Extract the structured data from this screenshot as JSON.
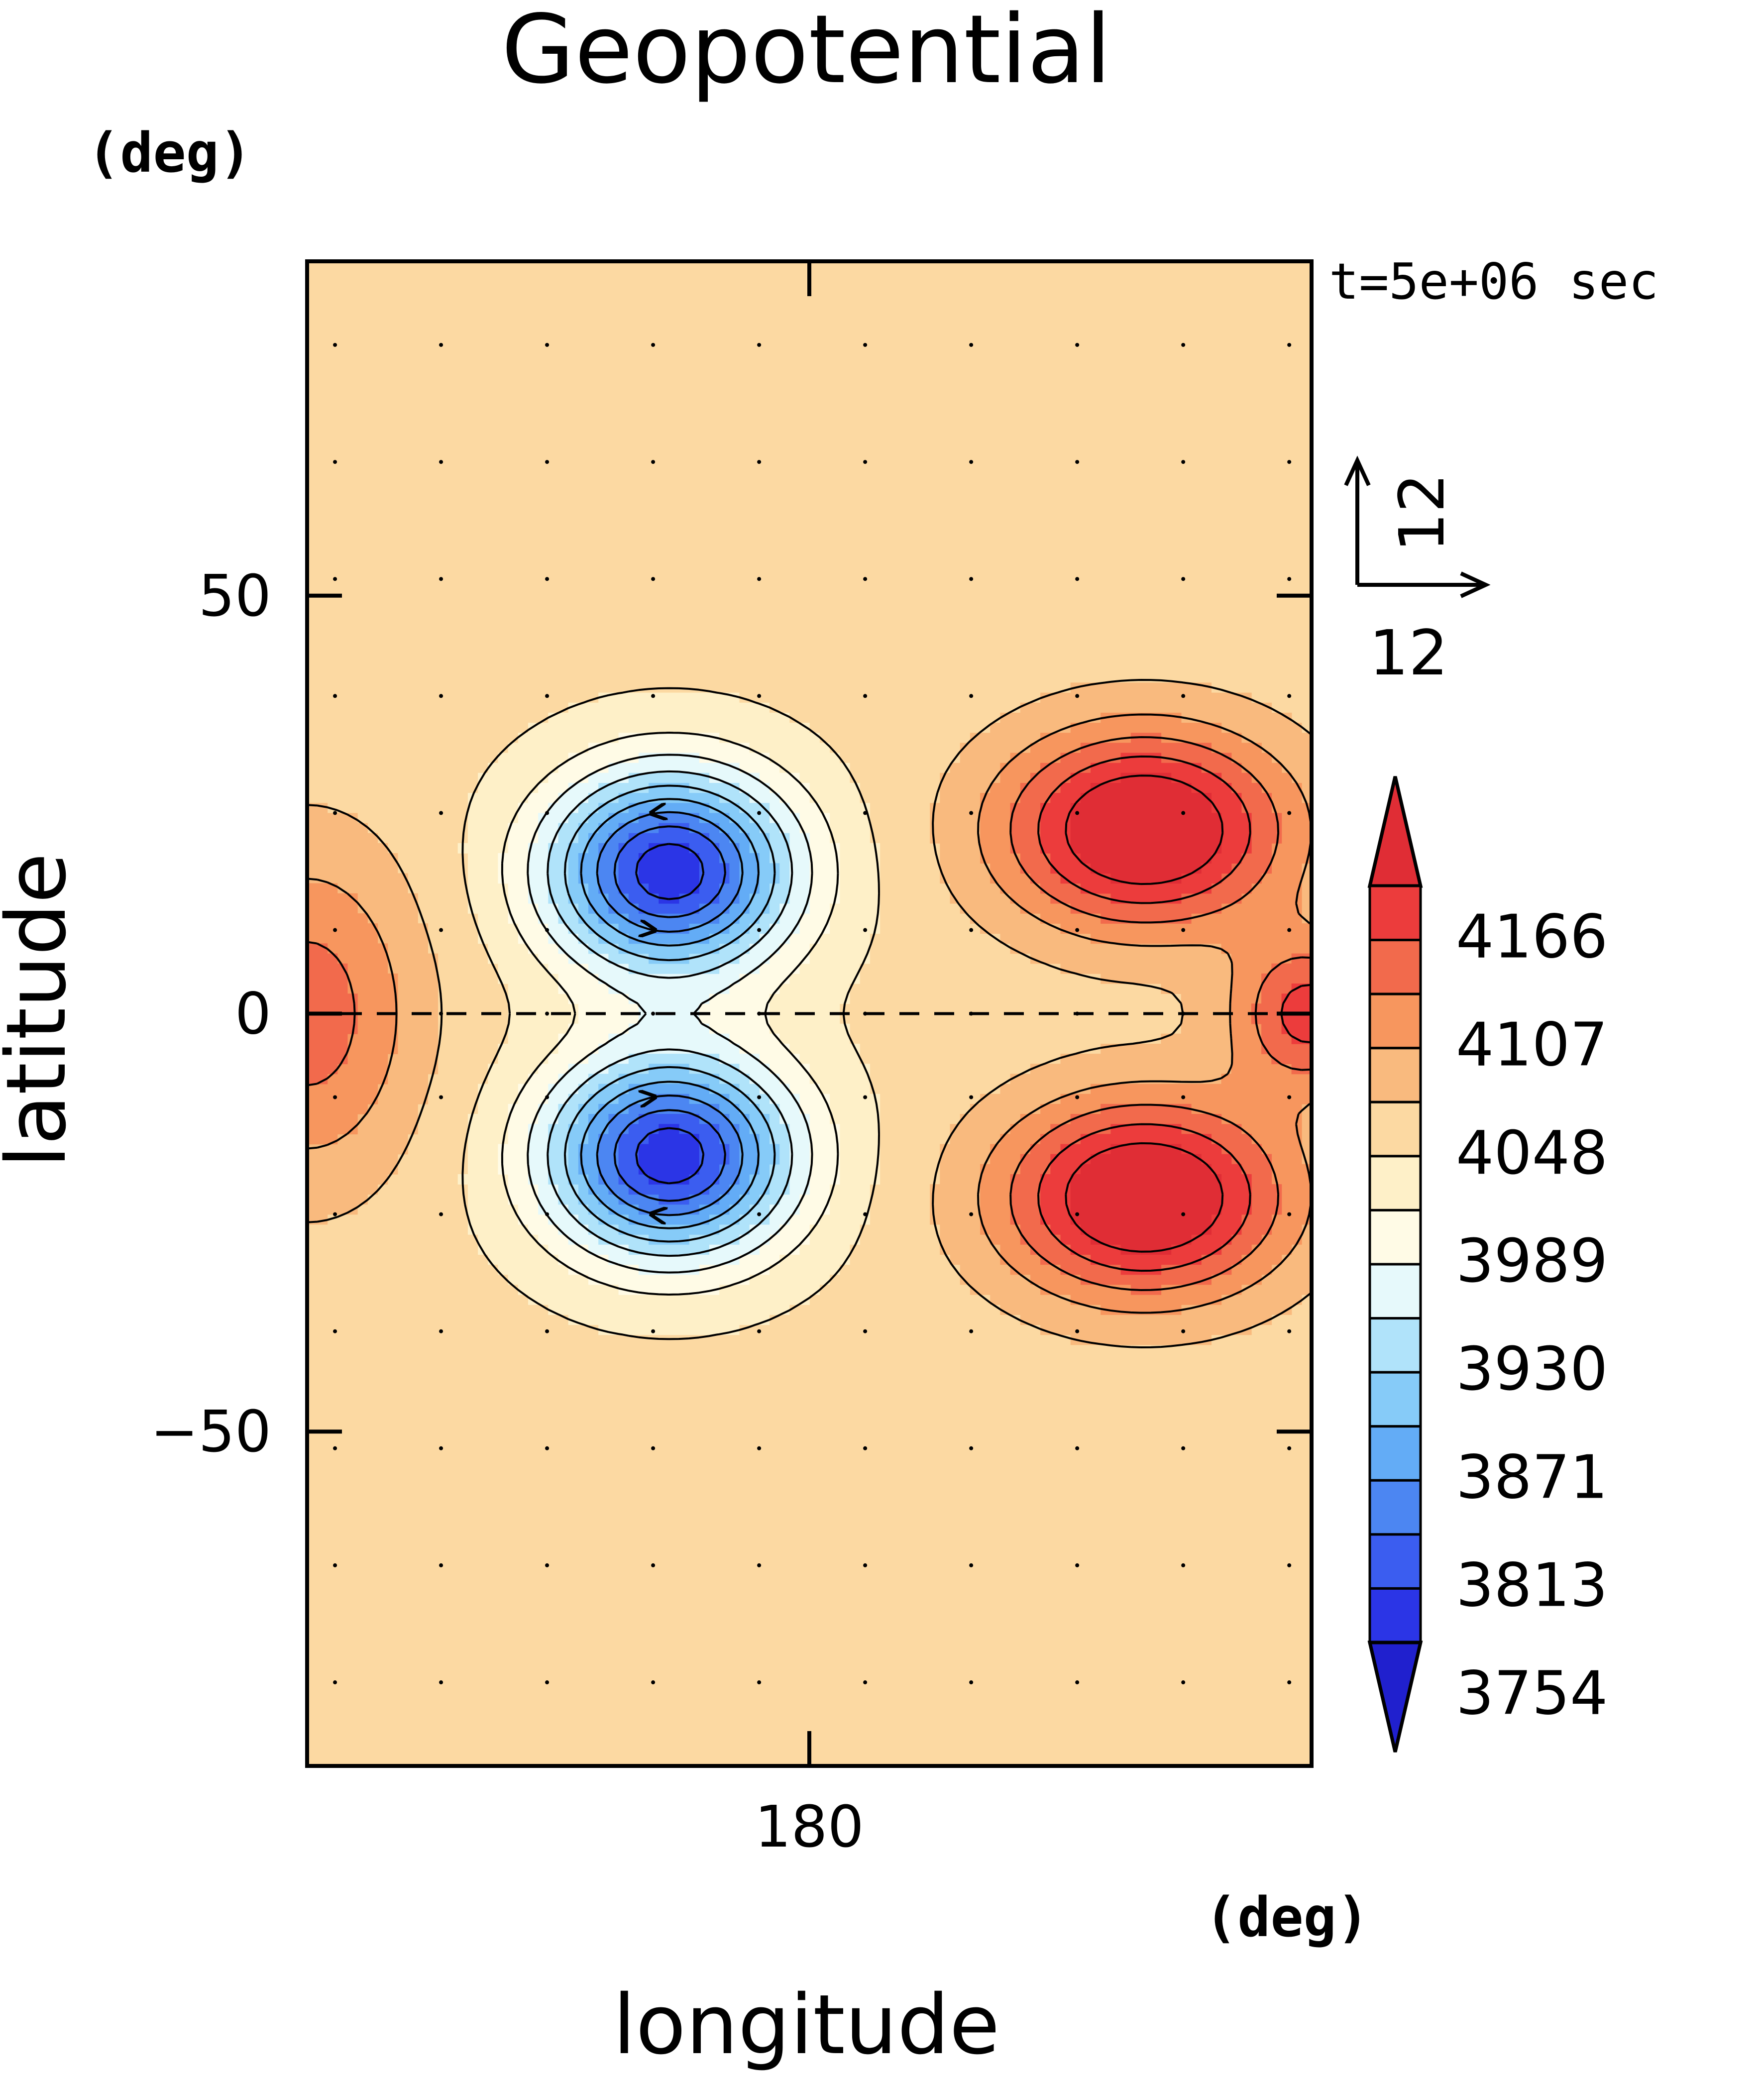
{
  "chart_data": {
    "type": "heatmap",
    "title": "Geopotential",
    "xlabel": "longitude",
    "ylabel": "latitude",
    "x_unit": "(deg)",
    "y_unit": "(deg)",
    "time_label": "t=5e+06 sec",
    "xlim": [
      90,
      270
    ],
    "ylim": [
      -90,
      90
    ],
    "x_ticks": [
      180
    ],
    "x_tick_labels": [
      "180"
    ],
    "y_ticks": [
      50,
      0,
      -50
    ],
    "y_tick_labels": [
      "50",
      "0",
      "−50"
    ],
    "vector_reference": {
      "u": 12,
      "v": 12,
      "u_label": "12",
      "v_label": "12"
    },
    "colorbar": {
      "labels": [
        "4166",
        "4107",
        "4048",
        "3989",
        "3930",
        "3871",
        "3813",
        "3754"
      ],
      "colors": [
        "#2020ce",
        "#2b35e6",
        "#3b5df0",
        "#4c86f2",
        "#63acf6",
        "#86cbf8",
        "#b0e3fa",
        "#e6f9fb",
        "#fffbe6",
        "#fef0c8",
        "#fcd9a2",
        "#f9ba7e",
        "#f7965e",
        "#f26a4c",
        "#ec3c3c",
        "#e02d35"
      ],
      "extend": "both"
    },
    "features": [
      {
        "kind": "low",
        "center": [
          155,
          17
        ],
        "min": 3740
      },
      {
        "kind": "low",
        "center": [
          155,
          -17
        ],
        "min": 3740
      },
      {
        "kind": "high",
        "center": [
          240,
          22
        ],
        "max": 4180
      },
      {
        "kind": "high",
        "center": [
          240,
          -22
        ],
        "max": 4180
      }
    ],
    "grid": false
  }
}
